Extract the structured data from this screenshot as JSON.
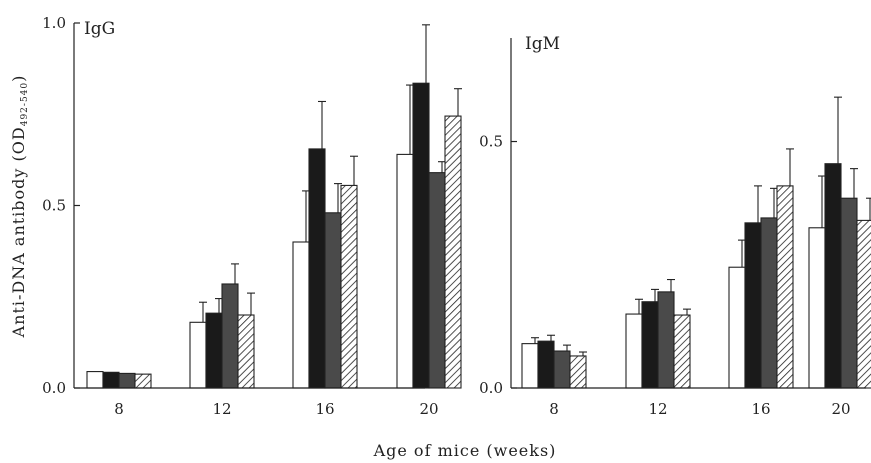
{
  "chart_data": [
    {
      "type": "bar",
      "panel_label": "IgG",
      "categories": [
        "8",
        "12",
        "16",
        "20"
      ],
      "series": [
        {
          "fill": "white",
          "values": [
            0.045,
            0.18,
            0.4,
            0.64
          ],
          "errors": [
            0.0,
            0.055,
            0.14,
            0.19
          ]
        },
        {
          "fill": "black",
          "values": [
            0.043,
            0.205,
            0.655,
            0.835
          ],
          "errors": [
            0.0,
            0.04,
            0.13,
            0.16
          ]
        },
        {
          "fill": "gray",
          "values": [
            0.04,
            0.285,
            0.48,
            0.59
          ],
          "errors": [
            0.0,
            0.055,
            0.08,
            0.03
          ]
        },
        {
          "fill": "hatched",
          "values": [
            0.038,
            0.2,
            0.555,
            0.745
          ],
          "errors": [
            0.0,
            0.06,
            0.08,
            0.075
          ]
        }
      ],
      "ylabel_main": "Anti-DNA antibody (OD",
      "ylabel_sub": "492-540",
      "ylabel_close": ")",
      "ylim": [
        0,
        1.0
      ],
      "yticks": [
        "0.0",
        "0.5",
        "1.0"
      ],
      "ytick_values": [
        0,
        0.5,
        1.0
      ]
    },
    {
      "type": "bar",
      "panel_label": "IgM",
      "categories": [
        "8",
        "12",
        "16",
        "20"
      ],
      "series": [
        {
          "fill": "white",
          "values": [
            0.09,
            0.15,
            0.245,
            0.325
          ],
          "errors": [
            0.012,
            0.03,
            0.055,
            0.105
          ]
        },
        {
          "fill": "black",
          "values": [
            0.095,
            0.175,
            0.335,
            0.455
          ],
          "errors": [
            0.012,
            0.025,
            0.075,
            0.135
          ]
        },
        {
          "fill": "gray",
          "values": [
            0.075,
            0.195,
            0.345,
            0.385
          ],
          "errors": [
            0.012,
            0.025,
            0.06,
            0.06
          ]
        },
        {
          "fill": "hatched",
          "values": [
            0.065,
            0.148,
            0.41,
            0.34
          ],
          "errors": [
            0.008,
            0.012,
            0.075,
            0.045
          ]
        }
      ],
      "ylim": [
        0,
        0.71
      ],
      "yticks": [
        "0.0",
        "0.5"
      ],
      "ytick_values": [
        0,
        0.5
      ]
    }
  ],
  "xlabel": "Age of mice (weeks)",
  "colors": {
    "black": "#1a1a1a",
    "gray": "#4a4a4a",
    "white": "#ffffff",
    "axis": "#222222"
  }
}
